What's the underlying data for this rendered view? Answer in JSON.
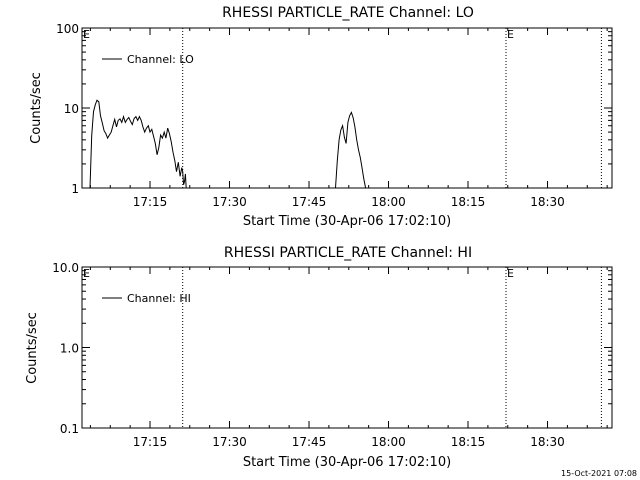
{
  "footer": "15-Oct-2021 07:08",
  "chart_data": [
    {
      "type": "line",
      "title": "RHESSI PARTICLE_RATE Channel: LO",
      "xlabel": "Start Time (30-Apr-06 17:02:10)",
      "ylabel": "Counts/sec",
      "yscale": "log",
      "ylim": [
        1,
        100
      ],
      "ytick_labels": [
        "1",
        "10",
        "100"
      ],
      "ytick_values": [
        1,
        10,
        100
      ],
      "xlim": [
        "17:02:10",
        "18:42:10"
      ],
      "xtick_labels": [
        "17:15",
        "17:30",
        "17:45",
        "18:00",
        "18:15",
        "18:30"
      ],
      "xtick_values": [
        "17:15",
        "17:30",
        "17:45",
        "18:00",
        "18:15",
        "18:30"
      ],
      "legend": {
        "position": "top-left",
        "entries": [
          "Channel: LO"
        ]
      },
      "vlines": [
        "17:21:10",
        "18:22:10",
        "18:40:10"
      ],
      "e_markers": [
        {
          "label": "E",
          "time": "17:02:10"
        },
        {
          "label": "E",
          "time": "18:22:10"
        }
      ],
      "series": [
        {
          "name": "Channel: LO",
          "segments": [
            {
              "time": [
                "17:03:40",
                "17:04:00",
                "17:04:20",
                "17:04:40",
                "17:05:00",
                "17:05:20",
                "17:05:40",
                "17:06:00",
                "17:06:20",
                "17:06:40",
                "17:07:00",
                "17:07:20",
                "17:07:40",
                "17:08:00",
                "17:08:20",
                "17:08:40",
                "17:09:00",
                "17:09:20",
                "17:09:40",
                "17:10:00",
                "17:10:20",
                "17:10:40",
                "17:11:00",
                "17:11:20",
                "17:11:40",
                "17:12:00",
                "17:12:20",
                "17:12:40",
                "17:13:00",
                "17:13:20",
                "17:13:40",
                "17:14:00",
                "17:14:20",
                "17:14:40",
                "17:15:00",
                "17:15:20",
                "17:15:40",
                "17:16:00",
                "17:16:20",
                "17:16:40",
                "17:17:00",
                "17:17:20",
                "17:17:40",
                "17:18:00",
                "17:18:20",
                "17:18:40",
                "17:19:00",
                "17:19:20",
                "17:19:40",
                "17:20:00",
                "17:20:20",
                "17:20:40",
                "17:21:00",
                "17:21:10",
                "17:21:20",
                "17:21:30",
                "17:21:40",
                "17:21:50"
              ],
              "values": [
                1.0,
                4.5,
                9.0,
                11.0,
                12.5,
                12.0,
                8.0,
                6.5,
                5.2,
                4.8,
                4.2,
                4.6,
                5.0,
                6.0,
                7.2,
                5.8,
                7.0,
                7.3,
                6.6,
                7.8,
                6.6,
                7.2,
                7.6,
                6.8,
                6.2,
                7.4,
                7.8,
                7.0,
                7.8,
                7.0,
                5.8,
                5.0,
                5.6,
                6.0,
                5.0,
                5.4,
                4.4,
                3.6,
                2.6,
                3.2,
                4.6,
                4.2,
                5.0,
                4.2,
                5.6,
                4.8,
                3.8,
                2.8,
                2.2,
                1.6,
                2.1,
                1.4,
                1.8,
                1.6,
                1.1,
                1.2,
                1.5,
                1.0
              ]
            },
            {
              "time": [
                "17:50:00",
                "17:50:20",
                "17:50:40",
                "17:51:00",
                "17:51:20",
                "17:51:40",
                "17:52:00",
                "17:52:20",
                "17:52:40",
                "17:53:00",
                "17:53:20",
                "17:53:40",
                "17:54:00",
                "17:54:20",
                "17:54:40",
                "17:55:00",
                "17:55:20",
                "17:55:40"
              ],
              "values": [
                1.0,
                2.2,
                4.0,
                5.3,
                6.0,
                4.3,
                3.6,
                6.6,
                8.0,
                8.8,
                7.5,
                5.8,
                4.0,
                3.0,
                2.4,
                1.8,
                1.3,
                1.0
              ]
            }
          ]
        }
      ]
    },
    {
      "type": "line",
      "title": "RHESSI PARTICLE_RATE Channel: HI",
      "xlabel": "Start Time (30-Apr-06 17:02:10)",
      "ylabel": "Counts/sec",
      "yscale": "log",
      "ylim": [
        0.1,
        10
      ],
      "ytick_labels": [
        "0.1",
        "1.0",
        "10.0"
      ],
      "ytick_values": [
        0.1,
        1,
        10
      ],
      "xlim": [
        "17:02:10",
        "18:42:10"
      ],
      "xtick_labels": [
        "17:15",
        "17:30",
        "17:45",
        "18:00",
        "18:15",
        "18:30"
      ],
      "xtick_values": [
        "17:15",
        "17:30",
        "17:45",
        "18:00",
        "18:15",
        "18:30"
      ],
      "legend": {
        "position": "top-left",
        "entries": [
          "Channel: HI"
        ]
      },
      "vlines": [
        "17:21:10",
        "18:22:10",
        "18:40:10"
      ],
      "e_markers": [
        {
          "label": "E",
          "time": "17:02:10"
        },
        {
          "label": "E",
          "time": "18:22:10"
        }
      ],
      "series": [
        {
          "name": "Channel: HI",
          "segments": []
        }
      ]
    }
  ]
}
